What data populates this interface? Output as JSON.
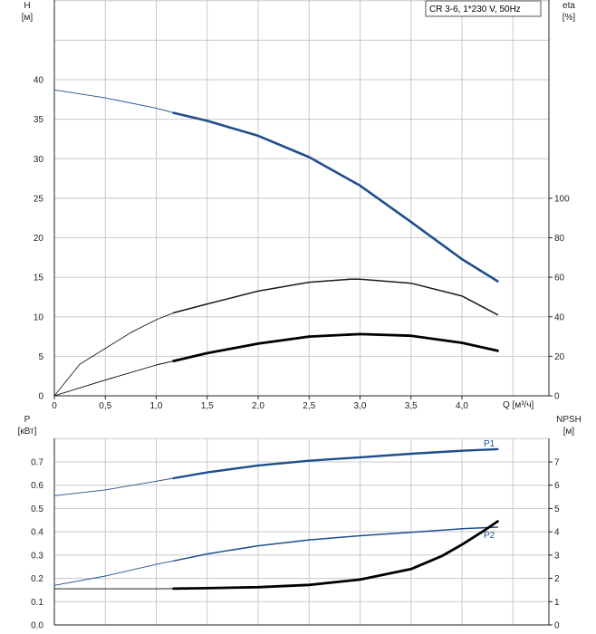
{
  "legend_box": "CR 3-6, 1*230 V, 50Hz",
  "chart_data": [
    {
      "type": "line",
      "x_label": "Q [м³/ч]",
      "y_left_label": "H",
      "y_left_unit": "[м]",
      "y_right_label": "eta",
      "y_right_unit": "[%]",
      "xlim": [
        0,
        4.7
      ],
      "x_ticks": [
        "0",
        "0,5",
        "1,0",
        "1,5",
        "2,0",
        "2,5",
        "3,0",
        "3,5",
        "4,0"
      ],
      "ylim_left": [
        0,
        50
      ],
      "y_left_ticks": [
        "0",
        "5",
        "10",
        "15",
        "20",
        "25",
        "30",
        "35",
        "40"
      ],
      "ylim_right": [
        0,
        200
      ],
      "y_right_ticks": [
        "0",
        "20",
        "40",
        "60",
        "80",
        "100"
      ],
      "grid": true,
      "series": [
        {
          "key": "H",
          "axis": "left",
          "color": "#1f4e8c",
          "x": [
            0,
            0.5,
            1.0,
            1.17,
            1.5,
            2.0,
            2.5,
            3.0,
            3.5,
            4.0,
            4.35
          ],
          "y": [
            38.7,
            37.7,
            36.4,
            35.8,
            34.8,
            32.9,
            30.2,
            26.6,
            22.0,
            17.3,
            14.5
          ]
        },
        {
          "key": "eta-black",
          "axis": "right",
          "color": "#1a1a1a",
          "x": [
            0,
            0.25,
            0.5,
            0.75,
            1.0,
            1.17,
            1.5,
            2.0,
            2.5,
            2.9,
            3.0,
            3.5,
            4.0,
            4.35
          ],
          "y": [
            0,
            16,
            24,
            32,
            38.5,
            42,
            46.5,
            53,
            57.5,
            59,
            59,
            57,
            50.5,
            41
          ]
        },
        {
          "key": "eta-thick",
          "axis": "left",
          "color": "#000000",
          "x": [
            0,
            0.5,
            1.0,
            1.17,
            1.5,
            2.0,
            2.5,
            3.0,
            3.5,
            4.0,
            4.35
          ],
          "y": [
            0,
            2.0,
            3.9,
            4.4,
            5.4,
            6.6,
            7.5,
            7.8,
            7.6,
            6.7,
            5.7
          ]
        }
      ]
    },
    {
      "type": "line",
      "x_label": "",
      "y_left_label": "P",
      "y_left_unit": "[кВт]",
      "y_right_label": "NPSH",
      "y_right_unit": "[м]",
      "xlim": [
        0,
        4.7
      ],
      "ylim_left": [
        0,
        0.8
      ],
      "y_left_ticks": [
        "0.0",
        "0.1",
        "0.2",
        "0.3",
        "0.4",
        "0.5",
        "0.6",
        "0.7"
      ],
      "ylim_right": [
        0,
        8
      ],
      "y_right_ticks": [
        "0",
        "1",
        "2",
        "3",
        "4",
        "5",
        "6",
        "7"
      ],
      "grid": true,
      "series": [
        {
          "name": "P1",
          "axis": "left",
          "color": "#1f4e8c",
          "x": [
            0,
            0.5,
            1.0,
            1.17,
            1.5,
            2.0,
            2.5,
            3.0,
            3.5,
            4.0,
            4.35
          ],
          "y": [
            0.555,
            0.58,
            0.617,
            0.63,
            0.655,
            0.685,
            0.705,
            0.72,
            0.735,
            0.748,
            0.755
          ]
        },
        {
          "name": "P2",
          "axis": "left",
          "color": "#1f4e8c",
          "x": [
            0,
            0.5,
            1.0,
            1.17,
            1.5,
            2.0,
            2.5,
            3.0,
            3.5,
            4.0,
            4.35
          ],
          "y": [
            0.17,
            0.21,
            0.26,
            0.275,
            0.305,
            0.34,
            0.365,
            0.383,
            0.398,
            0.413,
            0.42
          ]
        },
        {
          "key": "NPSH",
          "axis": "right",
          "color": "#000000",
          "x": [
            0,
            0.5,
            1.0,
            1.17,
            1.5,
            2.0,
            2.5,
            3.0,
            3.5,
            3.8,
            4.0,
            4.2,
            4.35
          ],
          "y": [
            1.55,
            1.55,
            1.55,
            1.56,
            1.58,
            1.62,
            1.72,
            1.95,
            2.4,
            2.95,
            3.45,
            4.0,
            4.45
          ]
        }
      ]
    }
  ]
}
